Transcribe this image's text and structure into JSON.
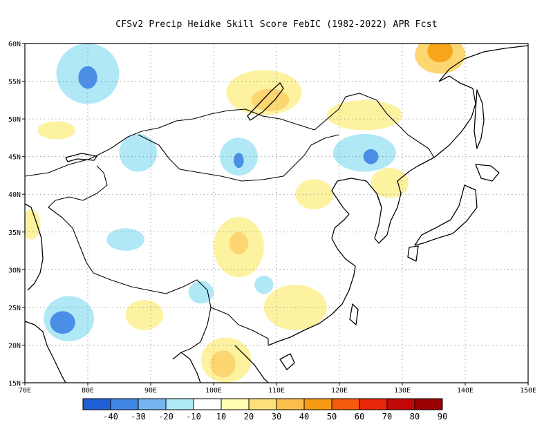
{
  "title": "CFSv2 Precip Heidke Skill Score FebIC (1982-2022) APR Fcst",
  "map": {
    "lon_range": [
      70,
      150
    ],
    "lat_range": [
      15,
      60
    ],
    "lon_ticks": [
      "70E",
      "80E",
      "90E",
      "100E",
      "110E",
      "120E",
      "130E",
      "140E",
      "150E"
    ],
    "lat_ticks": [
      "15N",
      "20N",
      "25N",
      "30N",
      "35N",
      "40N",
      "45N",
      "50N",
      "55N",
      "60N"
    ],
    "gridlines": "dotted",
    "skill_regions": [
      {
        "name": "west-siberia-negative",
        "lon": 80,
        "lat": 56,
        "rx": 5,
        "ry": 4,
        "level": -10
      },
      {
        "name": "west-siberia-core",
        "lon": 80,
        "lat": 55.5,
        "rx": 1.5,
        "ry": 1.5,
        "level": -30
      },
      {
        "name": "north-india-negative",
        "lon": 77,
        "lat": 23.5,
        "rx": 4,
        "ry": 3,
        "level": -10
      },
      {
        "name": "north-india-core",
        "lon": 76,
        "lat": 23,
        "rx": 2,
        "ry": 1.5,
        "level": -30
      },
      {
        "name": "altai-negative",
        "lon": 88,
        "lat": 45.5,
        "rx": 3,
        "ry": 2.5,
        "level": -10
      },
      {
        "name": "mongolia-negative",
        "lon": 104,
        "lat": 45,
        "rx": 3,
        "ry": 2.5,
        "level": -10
      },
      {
        "name": "mongolia-core",
        "lon": 104,
        "lat": 44.5,
        "rx": 0.8,
        "ry": 1,
        "level": -30
      },
      {
        "name": "manchuria-negative",
        "lon": 124,
        "lat": 45.5,
        "rx": 5,
        "ry": 2.5,
        "level": -10
      },
      {
        "name": "manchuria-core",
        "lon": 125,
        "lat": 45,
        "rx": 1.2,
        "ry": 1,
        "level": -30
      },
      {
        "name": "tibet-negative",
        "lon": 86,
        "lat": 34,
        "rx": 3,
        "ry": 1.5,
        "level": -10
      },
      {
        "name": "lake-baikal-positive",
        "lon": 108,
        "lat": 53.5,
        "rx": 6,
        "ry": 3,
        "level": 20
      },
      {
        "name": "lake-baikal-core",
        "lon": 109,
        "lat": 52.5,
        "rx": 3,
        "ry": 1.5,
        "level": 30
      },
      {
        "name": "far-east-positive",
        "lon": 136,
        "lat": 58.5,
        "rx": 4,
        "ry": 2.5,
        "level": 30
      },
      {
        "name": "far-east-core",
        "lon": 136,
        "lat": 59,
        "rx": 2,
        "ry": 1.5,
        "level": 40
      },
      {
        "name": "amur-positive",
        "lon": 124,
        "lat": 50.5,
        "rx": 6,
        "ry": 2,
        "level": 20
      },
      {
        "name": "central-china-positive",
        "lon": 104,
        "lat": 33,
        "rx": 4,
        "ry": 4,
        "level": 20
      },
      {
        "name": "central-china-core",
        "lon": 104,
        "lat": 33.5,
        "rx": 1.5,
        "ry": 1.5,
        "level": 30
      },
      {
        "name": "south-china-positive",
        "lon": 113,
        "lat": 25,
        "rx": 5,
        "ry": 3,
        "level": 20
      },
      {
        "name": "indochina-positive",
        "lon": 102,
        "lat": 18,
        "rx": 4,
        "ry": 3,
        "level": 20
      },
      {
        "name": "indochina-core",
        "lon": 101.5,
        "lat": 17.5,
        "rx": 2,
        "ry": 1.8,
        "level": 30
      },
      {
        "name": "north-china-positive",
        "lon": 116,
        "lat": 40,
        "rx": 3,
        "ry": 2,
        "level": 20
      },
      {
        "name": "korea-positive",
        "lon": 128,
        "lat": 41.5,
        "rx": 3,
        "ry": 2,
        "level": 20
      },
      {
        "name": "bay-bengal-positive",
        "lon": 89,
        "lat": 24,
        "rx": 3,
        "ry": 2,
        "level": 20
      },
      {
        "name": "pakistan-positive",
        "lon": 71,
        "lat": 36,
        "rx": 1.5,
        "ry": 2,
        "level": 20
      },
      {
        "name": "kazakh-positive",
        "lon": 75,
        "lat": 48.5,
        "rx": 3,
        "ry": 1.2,
        "level": 20
      },
      {
        "name": "sichuan-negative",
        "lon": 98,
        "lat": 27,
        "rx": 2,
        "ry": 1.5,
        "level": -10
      },
      {
        "name": "yunnan-negative",
        "lon": 108,
        "lat": 28,
        "rx": 1.5,
        "ry": 1.2,
        "level": -10
      }
    ]
  },
  "colorbar": {
    "labels": [
      "-40",
      "-30",
      "-20",
      "-10",
      "10",
      "20",
      "30",
      "40",
      "50",
      "60",
      "70",
      "80",
      "90"
    ],
    "colors": [
      "#1f5fd6",
      "#3f86e3",
      "#78b4f0",
      "#aeeaf6",
      "#ffffff",
      "#fefcb0",
      "#fde07a",
      "#fbbe4a",
      "#f79a14",
      "#f55a0c",
      "#e8260a",
      "#c20908",
      "#9a0206"
    ]
  },
  "level_colors": {
    "-30": "#4a8ee6",
    "-10": "#b0e8f6",
    "20": "#fdf2a0",
    "30": "#fcd670",
    "40": "#f7a51a"
  },
  "coast_color": "#000000"
}
